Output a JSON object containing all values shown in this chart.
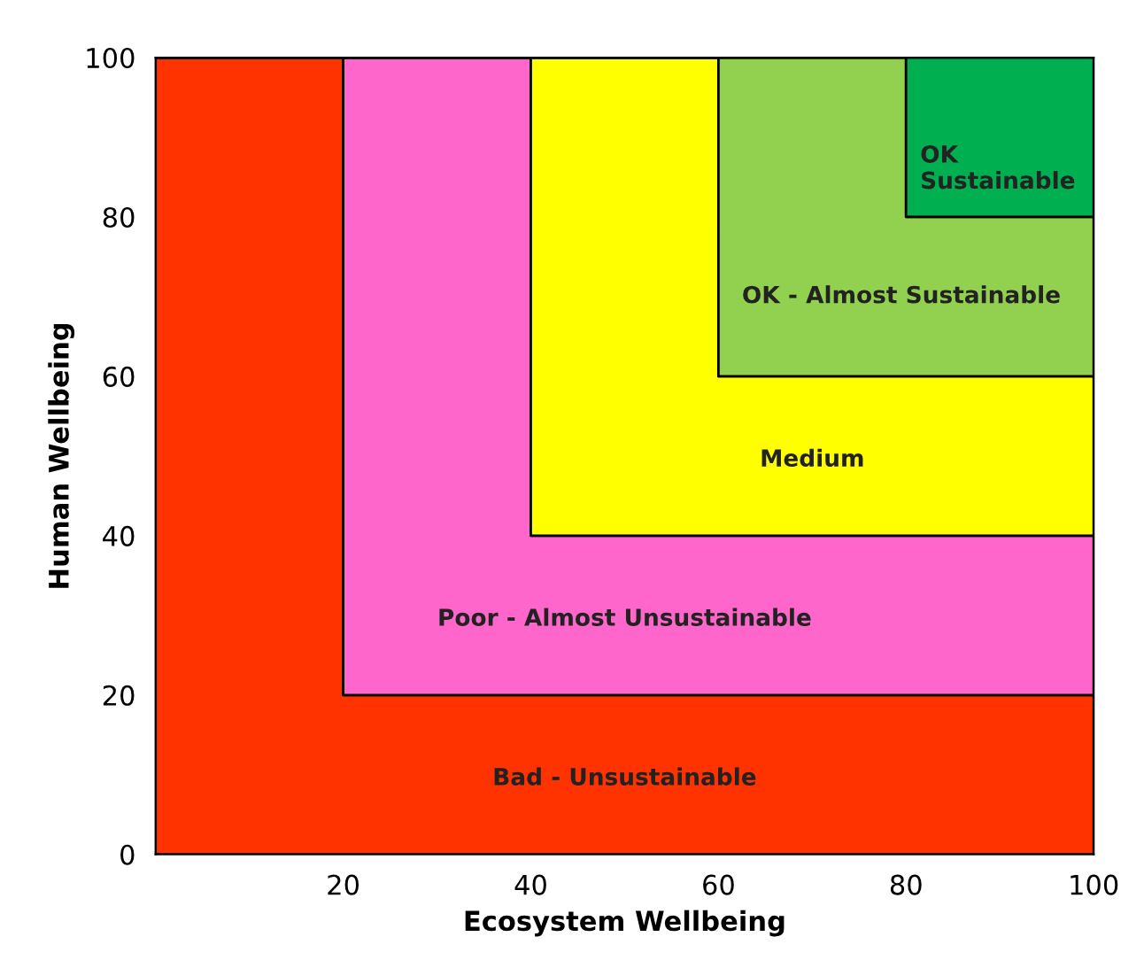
{
  "chart_data": {
    "type": "area",
    "stacked": true,
    "xlabel": "Ecosystem Wellbeing",
    "ylabel": "Human Wellbeing",
    "xlim": [
      0,
      100
    ],
    "ylim": [
      0,
      100
    ],
    "xticks": [
      20,
      40,
      60,
      80,
      100
    ],
    "yticks": [
      0,
      20,
      40,
      60,
      80,
      100
    ],
    "x": [
      0,
      20,
      20,
      40,
      40,
      60,
      60,
      80,
      80,
      100
    ],
    "series": [
      {
        "color": "#ff3300",
        "values": [
          100,
          100,
          20,
          20,
          20,
          20,
          20,
          20,
          20,
          20
        ]
      },
      {
        "color": "#ff66cc",
        "values": [
          0,
          0,
          80,
          80,
          20,
          20,
          20,
          20,
          20,
          20
        ]
      },
      {
        "color": "#ffff00",
        "values": [
          0,
          0,
          0,
          0,
          60,
          60,
          20,
          20,
          20,
          20
        ]
      },
      {
        "color": "#92d050",
        "values": [
          0,
          0,
          0,
          0,
          0,
          0,
          40,
          40,
          20,
          20
        ]
      },
      {
        "color": "#00b050",
        "values": [
          0,
          0,
          0,
          0,
          0,
          0,
          0,
          0,
          20,
          20
        ]
      }
    ],
    "annotations": [
      "Bad - Unsustainable",
      "Poor - Almost Unsustainable",
      "Medium",
      "OK - Almost Sustainable",
      "OK\nSustainable"
    ]
  }
}
